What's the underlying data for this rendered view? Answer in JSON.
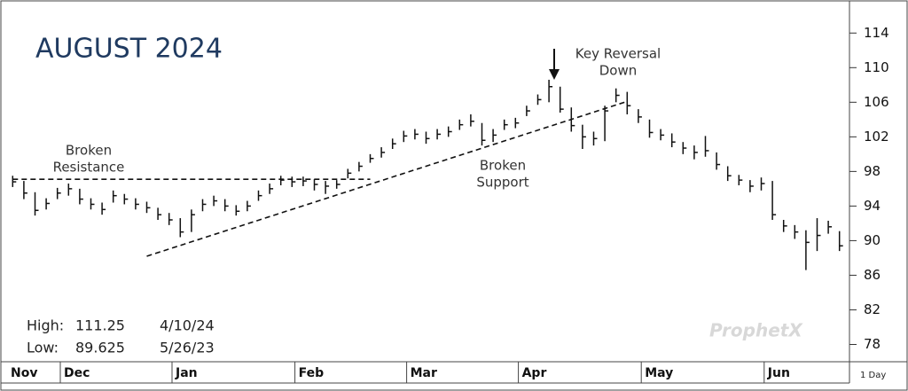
{
  "chart_data": {
    "type": "ohlc",
    "title": "AUGUST 2024",
    "categories": [
      "Nov",
      null,
      null,
      null,
      null,
      "Dec",
      null,
      null,
      null,
      null,
      null,
      null,
      null,
      null,
      null,
      "Jan",
      null,
      null,
      null,
      null,
      null,
      null,
      null,
      null,
      null,
      null,
      "Feb",
      null,
      null,
      null,
      null,
      null,
      null,
      null,
      null,
      null,
      "Mar",
      null,
      null,
      null,
      null,
      null,
      null,
      null,
      null,
      null,
      "Apr",
      null,
      null,
      null,
      null,
      null,
      null,
      null,
      null,
      null,
      null,
      "May",
      null,
      null,
      null,
      null,
      null,
      null,
      null,
      null,
      null,
      null,
      "Jun",
      null,
      null,
      null,
      null,
      null,
      null
    ],
    "high": [
      97.5,
      96.9,
      95.6,
      94.9,
      96.1,
      96.6,
      96,
      94.9,
      94.4,
      95.8,
      95.4,
      94.9,
      94.5,
      93.8,
      93.2,
      92.6,
      93.6,
      94.8,
      95.2,
      94.8,
      94.1,
      94.6,
      95.8,
      96.6,
      97.5,
      97.4,
      97.4,
      97.1,
      96.9,
      97,
      98.3,
      99.1,
      100,
      100.8,
      101.8,
      102.7,
      102.9,
      102.6,
      102.9,
      103.2,
      104,
      104.6,
      103.6,
      102.9,
      104,
      104.2,
      105.6,
      106.9,
      108.6,
      107.8,
      105.4,
      103.4,
      102.6,
      105.6,
      107.6,
      107.2,
      105.2,
      104,
      102.9,
      102.4,
      101.4,
      101,
      102.1,
      100.2,
      98.6,
      97.6,
      97,
      97.3,
      96.9,
      92.4,
      91.8,
      91.2,
      92.6,
      92.3,
      91.1
    ],
    "low": [
      96.2,
      94.8,
      92.9,
      93.6,
      94.8,
      95.2,
      94.2,
      93.6,
      93,
      94.4,
      94.2,
      93.6,
      93.2,
      92.4,
      91.8,
      90.4,
      91,
      93.4,
      94,
      93.4,
      92.9,
      93.4,
      94.6,
      95.4,
      96.4,
      96.2,
      96.3,
      95.8,
      95.4,
      96,
      97.2,
      98,
      99,
      99.6,
      100.6,
      101.4,
      101.7,
      101.2,
      101.7,
      102,
      102.8,
      103.2,
      101,
      101.4,
      102.8,
      103,
      104.4,
      105.7,
      106,
      104.8,
      102.6,
      100.6,
      101,
      101.5,
      106,
      104.6,
      103.6,
      101.9,
      101.6,
      100.8,
      100,
      99.4,
      99.7,
      98.2,
      96.9,
      96.4,
      95.6,
      95.8,
      92.4,
      91,
      90.2,
      86.6,
      88.8,
      90.8,
      88.8
    ],
    "close": [
      96.8,
      95.5,
      93.5,
      94.3,
      95.5,
      96,
      94.8,
      94.2,
      93.6,
      95.2,
      94.8,
      94.2,
      93.8,
      93,
      92.4,
      91,
      93,
      94.2,
      94.6,
      94,
      93.4,
      94,
      95.2,
      96,
      97,
      96.8,
      96.9,
      96.5,
      96.3,
      96.5,
      97.8,
      98.6,
      99.5,
      100.2,
      101.2,
      102.1,
      102.3,
      101.8,
      102.3,
      102.6,
      103.4,
      103.8,
      101.6,
      102.2,
      103.4,
      103.6,
      105,
      106.3,
      107.8,
      105.2,
      103.3,
      102,
      101.8,
      105,
      106.8,
      105.6,
      104.3,
      102.5,
      102.2,
      101.4,
      100.7,
      100.2,
      100.4,
      98.8,
      97.5,
      97,
      96.3,
      96.6,
      93,
      91.7,
      91,
      89.8,
      90.6,
      91.6,
      89.4
    ],
    "color": "#111111",
    "ylim": [
      76,
      117
    ],
    "yticks": [
      78,
      82,
      86,
      90,
      94,
      98,
      102,
      106,
      110,
      114
    ],
    "trendlines": [
      {
        "from": [
          0,
          97.1
        ],
        "to": [
          32,
          97.1
        ]
      },
      {
        "from": [
          12,
          88.2
        ],
        "to": [
          55,
          106.1
        ]
      }
    ],
    "annotations": [
      {
        "lines": [
          "Broken",
          "Resistance"
        ]
      },
      {
        "lines": [
          "Broken",
          "Support"
        ]
      },
      {
        "lines": [
          "Key Reversal",
          "Down"
        ]
      }
    ],
    "info": [
      {
        "label": "High:",
        "value": "111.25",
        "date": "4/10/24"
      },
      {
        "label": "Low:",
        "value": "89.625",
        "date": "5/26/23"
      }
    ],
    "watermark": "ProphetX",
    "interval": "1 Day"
  }
}
